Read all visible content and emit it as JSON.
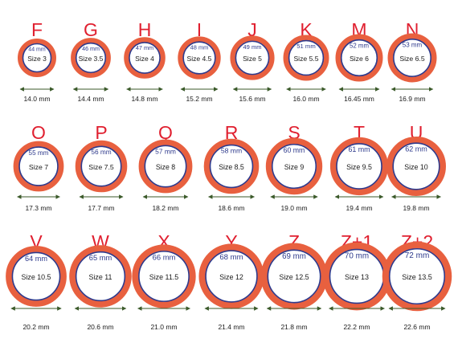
{
  "colors": {
    "ring": "#e8603f",
    "inner_ring": "#2e3a8c",
    "letter": "#e02030",
    "arrow": "#3b5a2a",
    "text": "#1a1a1a"
  },
  "rings": [
    {
      "letter": "F",
      "circumference": "44 mm",
      "size": "Size 3",
      "diameter": "14.0 mm",
      "diameter_mm": 14.0
    },
    {
      "letter": "G",
      "circumference": "46 mm",
      "size": "Size 3.5",
      "diameter": "14.4 mm",
      "diameter_mm": 14.4
    },
    {
      "letter": "H",
      "circumference": "47 mm",
      "size": "Size 4",
      "diameter": "14.8 mm",
      "diameter_mm": 14.8
    },
    {
      "letter": "I",
      "circumference": "48 mm",
      "size": "Size 4.5",
      "diameter": "15.2 mm",
      "diameter_mm": 15.2
    },
    {
      "letter": "J",
      "circumference": "49 mm",
      "size": "Size 5",
      "diameter": "15.6 mm",
      "diameter_mm": 15.6
    },
    {
      "letter": "K",
      "circumference": "51 mm",
      "size": "Size 5.5",
      "diameter": "16.0 mm",
      "diameter_mm": 16.0
    },
    {
      "letter": "M",
      "circumference": "52 mm",
      "size": "Size 6",
      "diameter": "16.45 mm",
      "diameter_mm": 16.45
    },
    {
      "letter": "N",
      "circumference": "53 mm",
      "size": "Size 6.5",
      "diameter": "16.9 mm",
      "diameter_mm": 16.9
    },
    {
      "letter": "O",
      "circumference": "55 mm",
      "size": "Size 7",
      "diameter": "17.3 mm",
      "diameter_mm": 17.3
    },
    {
      "letter": "P",
      "circumference": "56 mm",
      "size": "Size 7.5",
      "diameter": "17.7 mm",
      "diameter_mm": 17.7
    },
    {
      "letter": "Q",
      "circumference": "57 mm",
      "size": "Size 8",
      "diameter": "18.2 mm",
      "diameter_mm": 18.2
    },
    {
      "letter": "R",
      "circumference": "58 mm",
      "size": "Size 8.5",
      "diameter": "18.6 mm",
      "diameter_mm": 18.6
    },
    {
      "letter": "S",
      "circumference": "60 mm",
      "size": "Size 9",
      "diameter": "19.0 mm",
      "diameter_mm": 19.0
    },
    {
      "letter": "T",
      "circumference": "61 mm",
      "size": "Size 9.5",
      "diameter": "19.4 mm",
      "diameter_mm": 19.4
    },
    {
      "letter": "U",
      "circumference": "62 mm",
      "size": "Size 10",
      "diameter": "19.8 mm",
      "diameter_mm": 19.8
    },
    {
      "letter": "V",
      "circumference": "64 mm",
      "size": "Size 10.5",
      "diameter": "20.2 mm",
      "diameter_mm": 20.2
    },
    {
      "letter": "W",
      "circumference": "65 mm",
      "size": "Size 11",
      "diameter": "20.6 mm",
      "diameter_mm": 20.6
    },
    {
      "letter": "X",
      "circumference": "66 mm",
      "size": "Size 11.5",
      "diameter": "21.0 mm",
      "diameter_mm": 21.0
    },
    {
      "letter": "Y",
      "circumference": "68 mm",
      "size": "Size 12",
      "diameter": "21.4 mm",
      "diameter_mm": 21.4
    },
    {
      "letter": "Z",
      "circumference": "69 mm",
      "size": "Size 12.5",
      "diameter": "21.8 mm",
      "diameter_mm": 21.8
    },
    {
      "letter": "Z+1",
      "circumference": "70 mm",
      "size": "Size 13",
      "diameter": "22.2 mm",
      "diameter_mm": 22.2
    },
    {
      "letter": "Z+2",
      "circumference": "72 mm",
      "size": "Size 13.5",
      "diameter": "22.6 mm",
      "diameter_mm": 22.6
    }
  ]
}
